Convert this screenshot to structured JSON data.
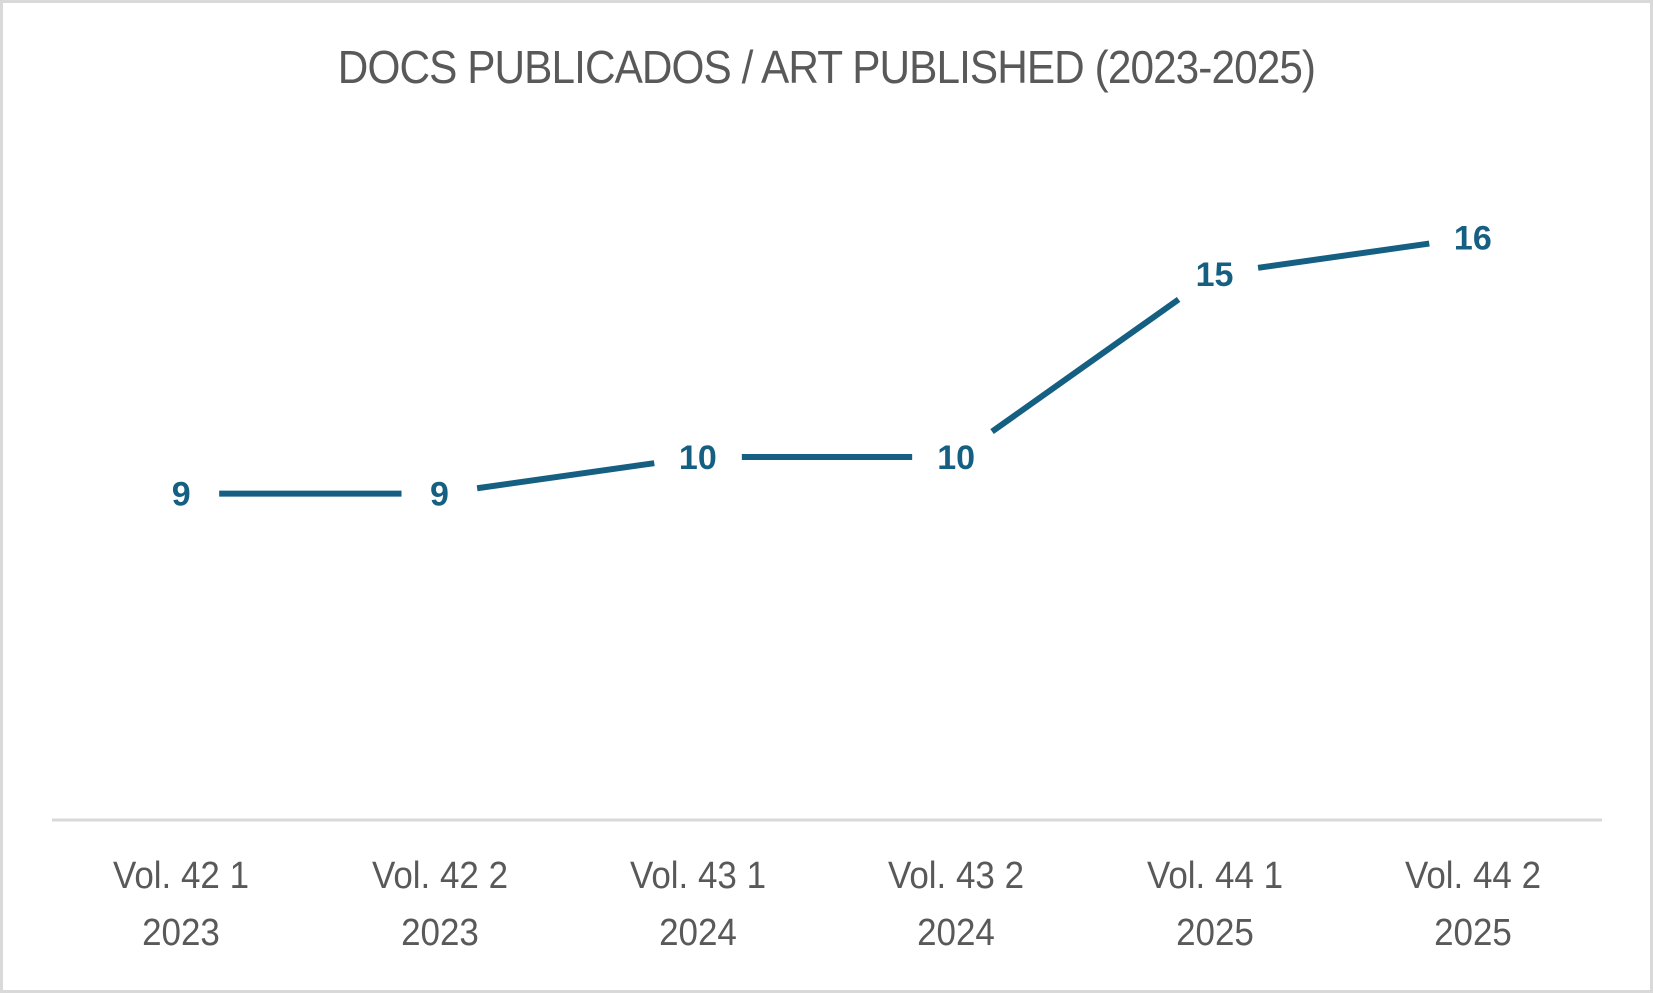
{
  "title": "DOCS PUBLICADOS / ART PUBLISHED (2023-2025)",
  "colors": {
    "line": "#155f82",
    "axis": "#d9d9d9",
    "text": "#595959",
    "border": "#d9d9d9"
  },
  "chart_data": {
    "type": "line",
    "title": "DOCS PUBLICADOS / ART PUBLISHED (2023-2025)",
    "categories": [
      "Vol. 42 1 2023",
      "Vol. 42 2 2023",
      "Vol. 43 1 2024",
      "Vol. 43 2 2024",
      "Vol. 44 1 2025",
      "Vol. 44 2 2025"
    ],
    "category_lines": [
      [
        "Vol. 42 1",
        "2023"
      ],
      [
        "Vol. 42 2",
        "2023"
      ],
      [
        "Vol. 43 1",
        "2024"
      ],
      [
        "Vol. 43 2",
        "2024"
      ],
      [
        "Vol. 44 1",
        "2025"
      ],
      [
        "Vol. 44 2",
        "2025"
      ]
    ],
    "series": [
      {
        "name": "Docs publicados",
        "values": [
          9,
          9,
          10,
          10,
          15,
          16
        ]
      }
    ],
    "data_labels": [
      "9",
      "9",
      "10",
      "10",
      "15",
      "16"
    ],
    "xlabel": "",
    "ylabel": "",
    "ylim": [
      0,
      18
    ],
    "grid": false,
    "legend": "none",
    "y_axis_visible": false
  }
}
